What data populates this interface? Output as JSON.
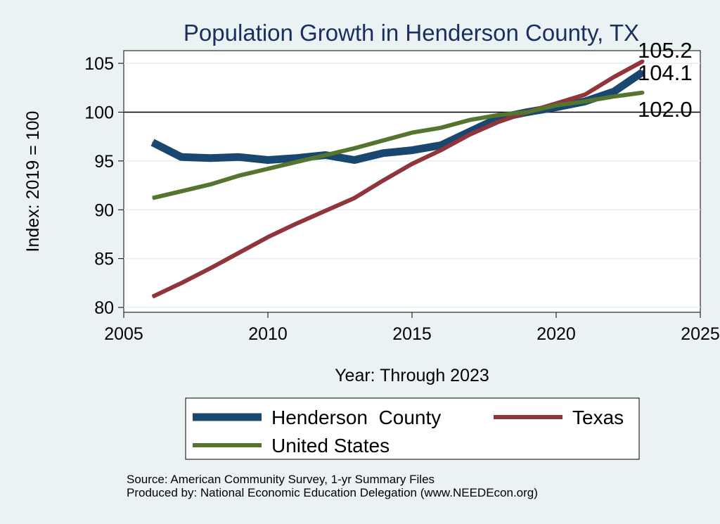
{
  "chart_data": {
    "type": "line",
    "title": "Population Growth in Henderson County, TX",
    "xlabel": "Year: Through 2023",
    "ylabel": "Index: 2019 = 100",
    "xlim": [
      2005,
      2025
    ],
    "ylim": [
      79.5,
      106.3
    ],
    "xticks": [
      2005,
      2010,
      2015,
      2020,
      2025
    ],
    "yticks": [
      80,
      85,
      90,
      95,
      100,
      105
    ],
    "reference_line": 100,
    "x": [
      2006,
      2007,
      2008,
      2009,
      2010,
      2011,
      2012,
      2013,
      2014,
      2015,
      2016,
      2017,
      2018,
      2019,
      2020,
      2021,
      2022,
      2023
    ],
    "series": [
      {
        "name": "Henderson  County",
        "color": "#1a476f",
        "values": [
          96.9,
          95.4,
          95.3,
          95.4,
          95.1,
          95.3,
          95.6,
          95.1,
          95.8,
          96.1,
          96.6,
          98.0,
          99.4,
          100.0,
          100.5,
          101.1,
          102.1,
          104.1
        ],
        "end_label": "104.1"
      },
      {
        "name": "Texas",
        "color": "#90353b",
        "values": [
          81.1,
          82.5,
          84.0,
          85.6,
          87.2,
          88.6,
          89.9,
          91.2,
          93.0,
          94.7,
          96.1,
          97.7,
          99.0,
          100.0,
          100.9,
          101.8,
          103.6,
          105.2
        ],
        "end_label": "105.2"
      },
      {
        "name": "United States",
        "color": "#55752f",
        "values": [
          91.2,
          91.9,
          92.6,
          93.5,
          94.2,
          94.9,
          95.6,
          96.3,
          97.1,
          97.9,
          98.4,
          99.2,
          99.7,
          100.0,
          100.7,
          101.1,
          101.6,
          102.0
        ],
        "end_label": "102.0"
      }
    ],
    "legend": [
      "Henderson  County",
      "Texas",
      "United States"
    ],
    "legend_position": "bottom"
  },
  "source": {
    "line1": "Source: American Community Survey, 1-yr Summary Files",
    "line2": "Produced by: National Economic Education Delegation (www.NEEDEcon.org)"
  }
}
